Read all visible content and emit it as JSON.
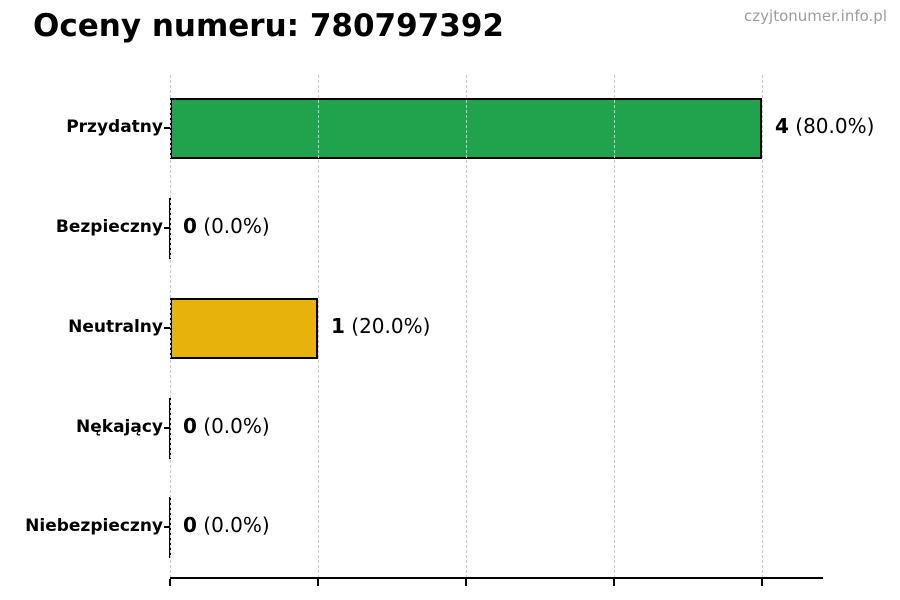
{
  "page": {
    "title": "Oceny numeru: 780797392",
    "watermark": "czyjtonumer.info.pl"
  },
  "colors": {
    "title_text": "#000000",
    "watermark_text": "#9b9da1",
    "grid": "#c9c9c9",
    "axis": "#000000",
    "bar_border": "#000000",
    "positive_green": "#21a24d",
    "neutral_gold": "#e8b20c"
  },
  "chart_data": {
    "type": "bar",
    "orientation": "horizontal",
    "title": "Oceny numeru: 780797392",
    "xlabel": "",
    "ylabel": "",
    "xlim": [
      0,
      4.4
    ],
    "x_ticks": [
      0,
      1,
      2,
      3,
      4
    ],
    "grid": "vertical dashed, drawn over bars",
    "legend": "none",
    "categories": [
      "Przydatny",
      "Bezpieczny",
      "Neutralny",
      "Nękający",
      "Niebezpieczny"
    ],
    "values": [
      4,
      0,
      1,
      0,
      0
    ],
    "percentages": [
      80.0,
      0.0,
      20.0,
      0.0,
      0.0
    ],
    "rows": [
      {
        "category": "Przydatny",
        "value": 4,
        "count_label": "4",
        "pct_label": "(80.0%)",
        "bar_color": "#21a24d"
      },
      {
        "category": "Bezpieczny",
        "value": 0,
        "count_label": "0",
        "pct_label": "(0.0%)",
        "bar_color": "#000000"
      },
      {
        "category": "Neutralny",
        "value": 1,
        "count_label": "1",
        "pct_label": "(20.0%)",
        "bar_color": "#e8b20c"
      },
      {
        "category": "Nękający",
        "value": 0,
        "count_label": "0",
        "pct_label": "(0.0%)",
        "bar_color": "#000000"
      },
      {
        "category": "Niebezpieczny",
        "value": 0,
        "count_label": "0",
        "pct_label": "(0.0%)",
        "bar_color": "#000000"
      }
    ]
  }
}
